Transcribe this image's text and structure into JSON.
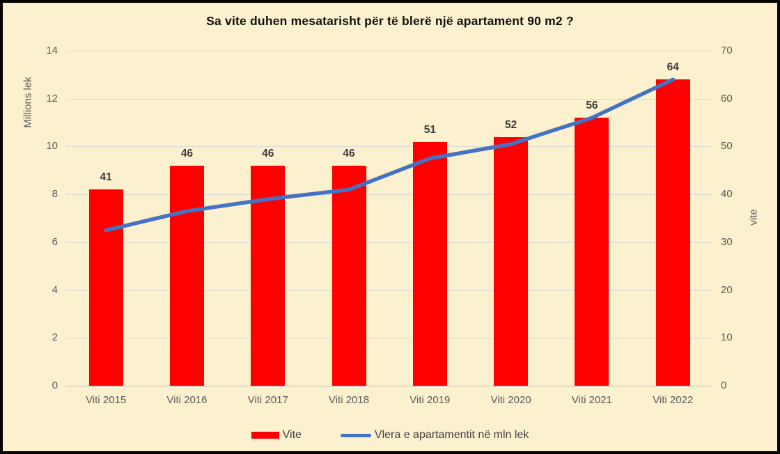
{
  "chart_data": {
    "type": "combo-bar-line",
    "title": "Sa vite duhen mesatarisht për të blerë një apartament 90 m2 ?",
    "categories": [
      "Viti 2015",
      "Viti 2016",
      "Viti 2017",
      "Viti 2018",
      "Viti 2019",
      "Viti 2020",
      "Viti 2021",
      "Viti 2022"
    ],
    "series": [
      {
        "name": "Vite",
        "type": "bar",
        "axis": "right",
        "color": "#FF0000",
        "values": [
          41,
          46,
          46,
          46,
          51,
          52,
          56,
          64
        ],
        "data_labels": [
          "41",
          "46",
          "46",
          "46",
          "51",
          "52",
          "56",
          "64"
        ]
      },
      {
        "name": "Vlera e apartamentit në mln lek",
        "type": "line",
        "axis": "left",
        "color": "#4472C4",
        "values": [
          6.5,
          7.3,
          7.8,
          8.2,
          9.5,
          10.1,
          11.2,
          12.8
        ]
      }
    ],
    "left_axis": {
      "label": "Millions lek",
      "min": 0,
      "max": 14,
      "step": 2,
      "ticks": [
        "0",
        "2",
        "4",
        "6",
        "8",
        "10",
        "12",
        "14"
      ]
    },
    "right_axis": {
      "label": "vite",
      "min": 0,
      "max": 70,
      "step": 10,
      "ticks": [
        "0",
        "10",
        "20",
        "30",
        "40",
        "50",
        "60",
        "70"
      ]
    },
    "grid": "horizontal",
    "legend_position": "bottom"
  },
  "legend": {
    "items": [
      {
        "label": "Vite",
        "swatch": "bar",
        "color": "#FF0000"
      },
      {
        "label": "Vlera e apartamentit në mln lek",
        "swatch": "line",
        "color": "#4472C4"
      }
    ]
  },
  "colors": {
    "background": "#FCF1CE",
    "border": "#000000",
    "bar": "#FF0000",
    "line": "#4472C4",
    "gridline": "#D9D9D9",
    "axis_text": "#595959",
    "data_label_text": "#3B3B3B",
    "title_text": "#111111"
  }
}
